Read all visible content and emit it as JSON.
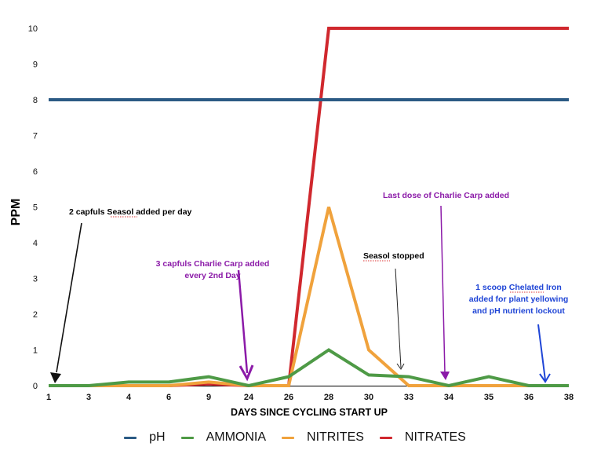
{
  "chart_data": {
    "type": "line",
    "title": "",
    "xlabel": "DAYS SINCE CYCLING START UP",
    "ylabel": "PPM",
    "ylim": [
      0,
      10
    ],
    "yticks": [
      "0",
      "1",
      "2",
      "3",
      "4",
      "5",
      "6",
      "7",
      "8",
      "9",
      "10"
    ],
    "categories": [
      "1",
      "3",
      "4",
      "6",
      "9",
      "24",
      "26",
      "28",
      "30",
      "33",
      "34",
      "35",
      "36",
      "38"
    ],
    "grid": false,
    "legend_position": "bottom",
    "series": [
      {
        "name": "pH",
        "color": "#2b5a84",
        "values": [
          8,
          8,
          8,
          8,
          8,
          8,
          8,
          8,
          8,
          8,
          8,
          8,
          8,
          8
        ]
      },
      {
        "name": "AMMONIA",
        "color": "#4e9a46",
        "values": [
          0,
          0,
          0.1,
          0.1,
          0.25,
          0,
          0.25,
          1,
          0.3,
          0.25,
          0,
          0.25,
          0,
          0
        ]
      },
      {
        "name": "NITRITES",
        "color": "#f0a23c",
        "values": [
          0,
          0,
          0,
          0,
          0.1,
          0,
          0,
          5,
          1,
          0,
          0,
          0,
          0,
          0
        ]
      },
      {
        "name": "NITRATES",
        "color": "#d0282e",
        "values": [
          0,
          0,
          0,
          0,
          0.05,
          0,
          0,
          10,
          10,
          10,
          10,
          10,
          10,
          10
        ]
      }
    ],
    "annotations": [
      {
        "text": "2 capfuls Seasol added per day",
        "color": "#000000",
        "target_day": "1"
      },
      {
        "text": "3 capfuls Charlie Carp added every 2nd Day",
        "color": "#8b1aa8",
        "target_day": "24"
      },
      {
        "text": "Seasol stopped",
        "color": "#000000",
        "target_day": "33"
      },
      {
        "text": "Last dose of Charlie Carp added",
        "color": "#8b1aa8",
        "target_day": "34"
      },
      {
        "text": "1 scoop Chelated Iron added for plant yellowing and pH nutrient lockout",
        "color": "#1f45d6",
        "target_day": "36"
      }
    ]
  },
  "annotations": {
    "seasol_added": "2 capfuls Seasol added per day",
    "carp_line1": "3 capfuls Charlie Carp added",
    "carp_line2": "every 2nd Day",
    "seasol_stopped": "Seasol stopped",
    "last_dose": "Last dose of Charlie Carp added",
    "iron_line1": "1 scoop Chelated Iron",
    "iron_line2": "added for plant yellowing",
    "iron_line3": "and pH nutrient lockout"
  },
  "legend": [
    {
      "label": "pH",
      "color": "#2b5a84"
    },
    {
      "label": "AMMONIA",
      "color": "#4e9a46"
    },
    {
      "label": "NITRITES",
      "color": "#f0a23c"
    },
    {
      "label": "NITRATES",
      "color": "#d0282e"
    }
  ]
}
